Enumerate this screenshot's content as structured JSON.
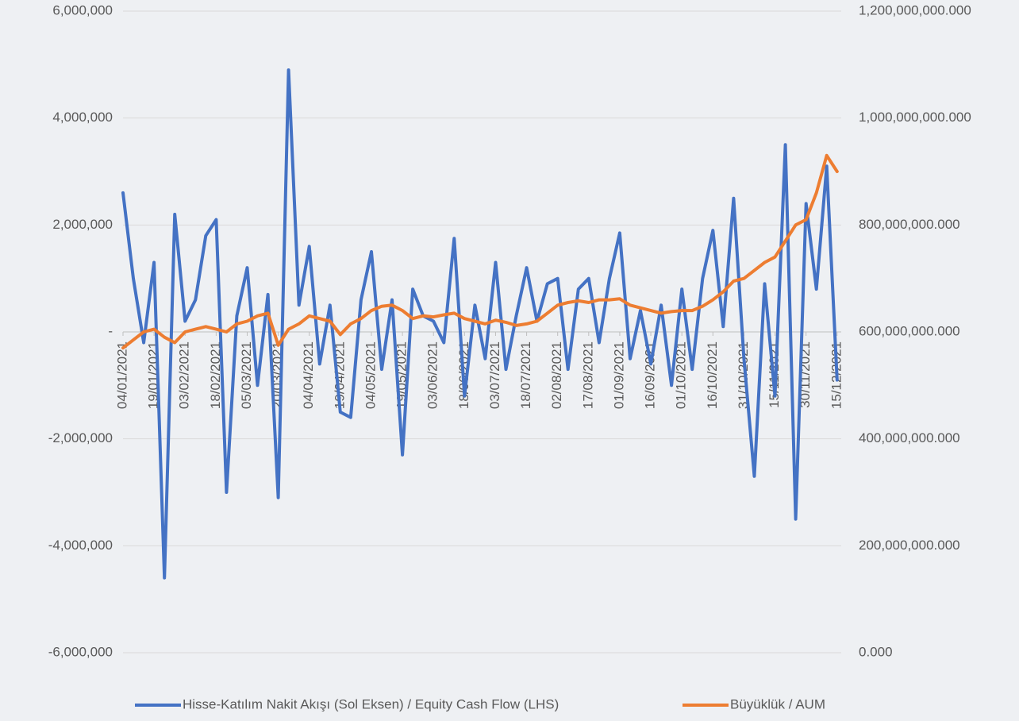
{
  "chart_data": {
    "type": "line",
    "x": [
      "04/01/2021",
      "09/01/2021",
      "14/01/2021",
      "19/01/2021",
      "24/01/2021",
      "29/01/2021",
      "03/02/2021",
      "08/02/2021",
      "13/02/2021",
      "18/02/2021",
      "23/02/2021",
      "28/02/2021",
      "05/03/2021",
      "10/03/2021",
      "15/03/2021",
      "20/03/2021",
      "25/03/2021",
      "30/03/2021",
      "04/04/2021",
      "09/04/2021",
      "14/04/2021",
      "19/04/2021",
      "24/04/2021",
      "29/04/2021",
      "04/05/2021",
      "09/05/2021",
      "14/05/2021",
      "19/05/2021",
      "24/05/2021",
      "29/05/2021",
      "03/06/2021",
      "08/06/2021",
      "13/06/2021",
      "18/06/2021",
      "23/06/2021",
      "28/06/2021",
      "03/07/2021",
      "08/07/2021",
      "13/07/2021",
      "18/07/2021",
      "23/07/2021",
      "28/07/2021",
      "02/08/2021",
      "07/08/2021",
      "12/08/2021",
      "17/08/2021",
      "22/08/2021",
      "27/08/2021",
      "01/09/2021",
      "06/09/2021",
      "11/09/2021",
      "16/09/2021",
      "21/09/2021",
      "26/09/2021",
      "01/10/2021",
      "06/10/2021",
      "11/10/2021",
      "16/10/2021",
      "21/10/2021",
      "26/10/2021",
      "31/10/2021",
      "05/11/2021",
      "10/11/2021",
      "15/11/2021",
      "20/11/2021",
      "25/11/2021",
      "30/11/2021",
      "05/12/2021",
      "10/12/2021",
      "15/12/2021"
    ],
    "series": [
      {
        "name": "Hisse-Katılım Nakit Akışı (Sol Eksen) / Equity Cash Flow (LHS)",
        "color": "#4472c4",
        "axis": "y",
        "values": [
          2600000,
          1000000,
          -200000,
          1300000,
          -4600000,
          2200000,
          200000,
          600000,
          1800000,
          2100000,
          -3000000,
          300000,
          1200000,
          -1000000,
          700000,
          -3100000,
          4900000,
          500000,
          1600000,
          -600000,
          500000,
          -1500000,
          -1600000,
          600000,
          1500000,
          -700000,
          600000,
          -2300000,
          800000,
          300000,
          200000,
          -200000,
          1750000,
          -1200000,
          500000,
          -500000,
          1300000,
          -700000,
          300000,
          1200000,
          200000,
          900000,
          1000000,
          -700000,
          800000,
          1000000,
          -200000,
          1000000,
          1850000,
          -500000,
          400000,
          -600000,
          500000,
          -1000000,
          800000,
          -700000,
          1000000,
          1900000,
          100000,
          2500000,
          -500000,
          -2700000,
          900000,
          -1200000,
          3500000,
          -3500000,
          2400000,
          800000,
          3100000,
          -900000
        ]
      },
      {
        "name": "Büyüklük / AUM",
        "color": "#ed7d31",
        "axis": "y2",
        "values": [
          570000000,
          585000000,
          600000000,
          605000000,
          590000000,
          580000000,
          600000000,
          605000000,
          610000000,
          605000000,
          600000000,
          615000000,
          620000000,
          630000000,
          635000000,
          575000000,
          605000000,
          615000000,
          630000000,
          625000000,
          620000000,
          595000000,
          615000000,
          625000000,
          640000000,
          648000000,
          650000000,
          640000000,
          625000000,
          630000000,
          628000000,
          632000000,
          635000000,
          625000000,
          620000000,
          615000000,
          622000000,
          618000000,
          612000000,
          615000000,
          620000000,
          635000000,
          650000000,
          655000000,
          658000000,
          655000000,
          660000000,
          660000000,
          662000000,
          650000000,
          645000000,
          640000000,
          635000000,
          638000000,
          640000000,
          640000000,
          648000000,
          660000000,
          675000000,
          695000000,
          700000000,
          715000000,
          730000000,
          740000000,
          770000000,
          800000000,
          810000000,
          860000000,
          930000000,
          900000000
        ]
      }
    ],
    "xlim": [
      "04/01/2021",
      "17/12/2021"
    ],
    "xticks": [
      "04/01/2021",
      "19/01/2021",
      "03/02/2021",
      "18/02/2021",
      "05/03/2021",
      "20/03/2021",
      "04/04/2021",
      "19/04/2021",
      "04/05/2021",
      "19/05/2021",
      "03/06/2021",
      "18/06/2021",
      "03/07/2021",
      "18/07/2021",
      "02/08/2021",
      "17/08/2021",
      "01/09/2021",
      "16/09/2021",
      "01/10/2021",
      "16/10/2021",
      "31/10/2021",
      "15/11/2021",
      "30/11/2021",
      "15/12/2021"
    ],
    "ylim": [
      -6000000,
      6000000
    ],
    "yticks": [
      {
        "value": -6000000,
        "label": "-6,000,000"
      },
      {
        "value": -4000000,
        "label": "-4,000,000"
      },
      {
        "value": -2000000,
        "label": "-2,000,000"
      },
      {
        "value": 0,
        "label": "-"
      },
      {
        "value": 2000000,
        "label": "2,000,000"
      },
      {
        "value": 4000000,
        "label": "4,000,000"
      },
      {
        "value": 6000000,
        "label": "6,000,000"
      }
    ],
    "y2lim": [
      0,
      1200000000
    ],
    "y2ticks": [
      {
        "value": 0,
        "label": "0.000"
      },
      {
        "value": 200000000,
        "label": "200,000,000.000"
      },
      {
        "value": 400000000,
        "label": "400,000,000.000"
      },
      {
        "value": 600000000,
        "label": "600,000,000.000"
      },
      {
        "value": 800000000,
        "label": "800,000,000.000"
      },
      {
        "value": 1000000000,
        "label": "1,000,000,000.000"
      },
      {
        "value": 1200000000,
        "label": "1,200,000,000.000"
      }
    ],
    "grid": true,
    "legend": "bottom"
  }
}
